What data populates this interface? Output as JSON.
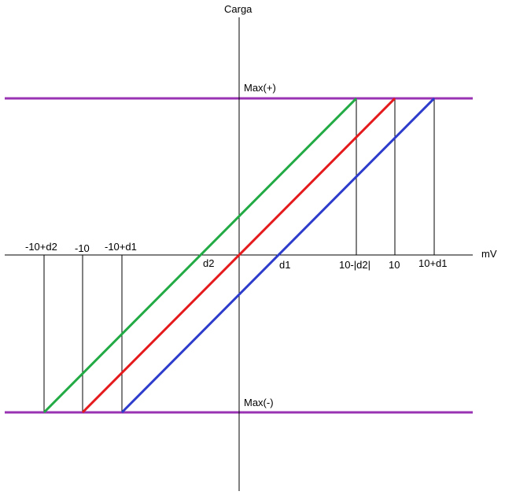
{
  "diagram": {
    "y_axis_label": "Carga",
    "x_axis_label": "mV",
    "max_pos_label": "Max(+)",
    "max_neg_label": "Max(-)",
    "colors": {
      "axis": "#000000",
      "limit": "#9933b3",
      "green": "#22aa44",
      "red": "#e41a1c",
      "blue": "#2e3ccc"
    },
    "labels_above_axis": [
      "-10+d2",
      "-10",
      "-10+d1"
    ],
    "labels_below_axis": [
      "d2",
      "d1",
      "10-|d2|",
      "10",
      "10+d1"
    ]
  }
}
